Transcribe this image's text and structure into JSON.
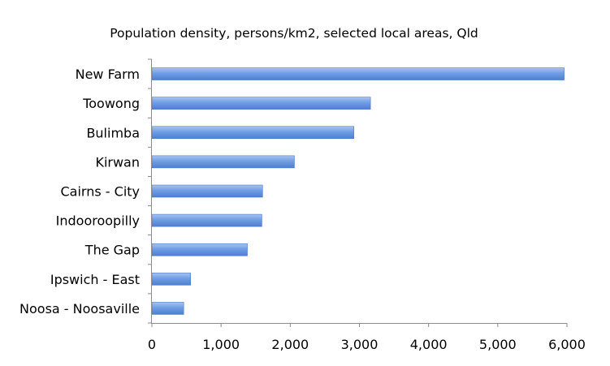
{
  "chart_data": {
    "type": "bar",
    "orientation": "horizontal",
    "title": "Population density, persons/km2, selected local areas, Qld",
    "xlabel": "",
    "ylabel": "",
    "categories": [
      "New Farm",
      "Toowong",
      "Bulimba",
      "Kirwan",
      "Cairns - City",
      "Indooroopilly",
      "The Gap",
      "Ipswich - East",
      "Noosa - Noosaville"
    ],
    "values": [
      5960,
      3160,
      2920,
      2060,
      1600,
      1590,
      1380,
      560,
      460
    ],
    "xlim": [
      0,
      6000
    ],
    "xticks": [
      0,
      1000,
      2000,
      3000,
      4000,
      5000,
      6000
    ],
    "xtick_labels": [
      "0",
      "1,000",
      "2,000",
      "3,000",
      "4,000",
      "5,000",
      "6,000"
    ],
    "grid": false,
    "legend": "none",
    "colors": {
      "bar_top": "#a9c4f0",
      "bar_mid": "#6e9ee4",
      "bar_bottom": "#4f7fcf",
      "bar_edge": "#4a78c8",
      "axis": "#8c8c8c"
    }
  }
}
